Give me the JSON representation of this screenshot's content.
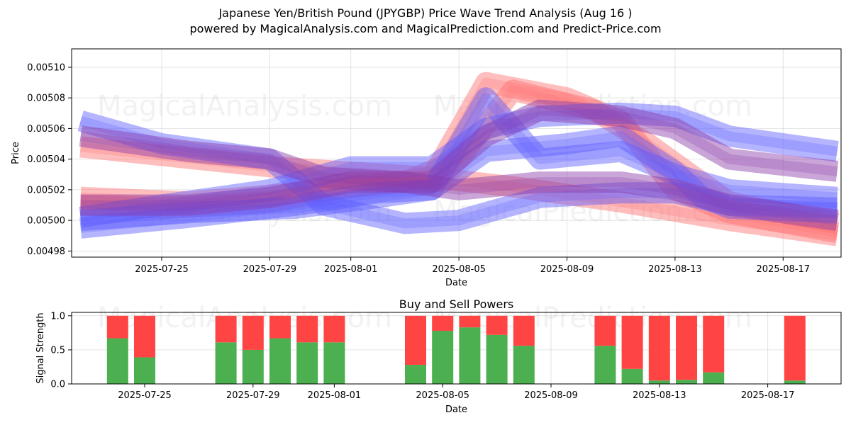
{
  "titles": {
    "main": "Japanese Yen/British Pound (JPYGBP) Price Wave Trend Analysis (Aug 16 )",
    "sub": "powered by MagicalAnalysis.com and MagicalPrediction.com and Predict-Price.com"
  },
  "watermarks": [
    "MagicalAnalysis.com",
    "MagicalPrediction.com"
  ],
  "colors": {
    "buy": "#4caf50",
    "sell": "#ff4444",
    "band_red": "#ff6f6f",
    "band_blue": "#5a5aff",
    "band_purple": "#8a3aa8"
  },
  "chart_data": [
    {
      "type": "area",
      "xlabel": "Date",
      "ylabel": "Price",
      "ylim": [
        0.004976,
        0.005112
      ],
      "x_ticks": [
        "2025-07-25",
        "2025-07-29",
        "2025-08-01",
        "2025-08-05",
        "2025-08-09",
        "2025-08-13",
        "2025-08-17"
      ],
      "y_ticks": [
        "0.00498",
        "0.00500",
        "0.00502",
        "0.00504",
        "0.00506",
        "0.00508",
        "0.00510"
      ],
      "grid": true,
      "series": [
        {
          "color": "red",
          "points": [
            [
              "2025-07-22",
              0.005048
            ],
            [
              "2025-07-29",
              0.005035
            ],
            [
              "2025-08-04",
              0.005028
            ],
            [
              "2025-08-07",
              0.005022
            ],
            [
              "2025-08-11",
              0.005012
            ],
            [
              "2025-08-15",
              0.005
            ],
            [
              "2025-08-19",
              0.00499
            ]
          ]
        },
        {
          "color": "red",
          "points": [
            [
              "2025-07-22",
              0.00501
            ],
            [
              "2025-07-25",
              0.005008
            ],
            [
              "2025-07-29",
              0.005012
            ],
            [
              "2025-08-01",
              0.005022
            ],
            [
              "2025-08-04",
              0.005028
            ],
            [
              "2025-08-06",
              0.00509
            ],
            [
              "2025-08-09",
              0.00508
            ],
            [
              "2025-08-11",
              0.005065
            ],
            [
              "2025-08-13",
              0.00502
            ],
            [
              "2025-08-15",
              0.005005
            ],
            [
              "2025-08-19",
              0.004992
            ]
          ]
        },
        {
          "color": "red",
          "points": [
            [
              "2025-07-22",
              0.005015
            ],
            [
              "2025-07-26",
              0.005012
            ],
            [
              "2025-07-30",
              0.005018
            ],
            [
              "2025-08-03",
              0.005025
            ],
            [
              "2025-08-05",
              0.00504
            ],
            [
              "2025-08-07",
              0.005085
            ],
            [
              "2025-08-10",
              0.005072
            ],
            [
              "2025-08-12",
              0.00505
            ],
            [
              "2025-08-15",
              0.005012
            ],
            [
              "2025-08-19",
              0.004998
            ]
          ]
        },
        {
          "color": "blue",
          "points": [
            [
              "2025-07-22",
              0.005065
            ],
            [
              "2025-07-25",
              0.00505
            ],
            [
              "2025-07-29",
              0.00504
            ],
            [
              "2025-07-31",
              0.00501
            ],
            [
              "2025-08-03",
              0.004998
            ],
            [
              "2025-08-05",
              0.005
            ],
            [
              "2025-08-08",
              0.005015
            ],
            [
              "2025-08-11",
              0.005018
            ],
            [
              "2025-08-13",
              0.005018
            ],
            [
              "2025-08-15",
              0.00501
            ],
            [
              "2025-08-19",
              0.005008
            ]
          ]
        },
        {
          "color": "blue",
          "points": [
            [
              "2025-07-22",
              0.005002
            ],
            [
              "2025-07-25",
              0.00501
            ],
            [
              "2025-07-29",
              0.00502
            ],
            [
              "2025-08-01",
              0.005035
            ],
            [
              "2025-08-04",
              0.005035
            ],
            [
              "2025-08-06",
              0.00506
            ],
            [
              "2025-08-08",
              0.005068
            ],
            [
              "2025-08-11",
              0.00507
            ],
            [
              "2025-08-13",
              0.005068
            ],
            [
              "2025-08-15",
              0.005055
            ],
            [
              "2025-08-19",
              0.005045
            ]
          ]
        },
        {
          "color": "blue",
          "points": [
            [
              "2025-07-22",
              0.005
            ],
            [
              "2025-07-26",
              0.005005
            ],
            [
              "2025-07-30",
              0.005008
            ],
            [
              "2025-08-02",
              0.005015
            ],
            [
              "2025-08-04",
              0.00502
            ],
            [
              "2025-08-06",
              0.00508
            ],
            [
              "2025-08-07",
              0.00506
            ],
            [
              "2025-08-08",
              0.00504
            ],
            [
              "2025-08-11",
              0.005045
            ],
            [
              "2025-08-13",
              0.00503
            ],
            [
              "2025-08-15",
              0.00502
            ],
            [
              "2025-08-19",
              0.005015
            ]
          ]
        },
        {
          "color": "blue",
          "points": [
            [
              "2025-07-22",
              0.004995
            ],
            [
              "2025-07-26",
              0.005002
            ],
            [
              "2025-07-30",
              0.00501
            ],
            [
              "2025-08-02",
              0.005018
            ],
            [
              "2025-08-04",
              0.00502
            ],
            [
              "2025-08-06",
              0.005045
            ],
            [
              "2025-08-09",
              0.00505
            ],
            [
              "2025-08-11",
              0.005055
            ],
            [
              "2025-08-13",
              0.005032
            ],
            [
              "2025-08-14",
              0.005015
            ],
            [
              "2025-08-15",
              0.005008
            ],
            [
              "2025-08-19",
              0.005005
            ]
          ]
        },
        {
          "color": "purple",
          "points": [
            [
              "2025-07-22",
              0.005055
            ],
            [
              "2025-07-26",
              0.005045
            ],
            [
              "2025-07-29",
              0.00504
            ],
            [
              "2025-07-31",
              0.005028
            ],
            [
              "2025-08-03",
              0.005025
            ],
            [
              "2025-08-05",
              0.00502
            ],
            [
              "2025-08-08",
              0.005025
            ],
            [
              "2025-08-11",
              0.005025
            ],
            [
              "2025-08-13",
              0.00502
            ],
            [
              "2025-08-15",
              0.00501
            ],
            [
              "2025-08-19",
              0.005
            ]
          ]
        },
        {
          "color": "purple",
          "points": [
            [
              "2025-07-22",
              0.00501
            ],
            [
              "2025-07-26",
              0.00501
            ],
            [
              "2025-07-29",
              0.005015
            ],
            [
              "2025-08-01",
              0.005025
            ],
            [
              "2025-08-04",
              0.005025
            ],
            [
              "2025-08-06",
              0.005055
            ],
            [
              "2025-08-08",
              0.005072
            ],
            [
              "2025-08-11",
              0.005068
            ],
            [
              "2025-08-13",
              0.00506
            ],
            [
              "2025-08-15",
              0.00504
            ],
            [
              "2025-08-19",
              0.005032
            ]
          ]
        }
      ]
    },
    {
      "type": "bar",
      "title": "Buy and Sell Powers",
      "xlabel": "Date",
      "ylabel": "Signal Strength",
      "ylim": [
        0,
        1.05
      ],
      "y_ticks": [
        "0.0",
        "0.5",
        "1.0"
      ],
      "x_ticks": [
        "2025-07-25",
        "2025-07-29",
        "2025-08-01",
        "2025-08-05",
        "2025-08-09",
        "2025-08-13",
        "2025-08-17"
      ],
      "grid": true,
      "categories": [
        "2025-07-24",
        "2025-07-25",
        "2025-07-28",
        "2025-07-29",
        "2025-07-30",
        "2025-07-31",
        "2025-08-01",
        "2025-08-04",
        "2025-08-05",
        "2025-08-06",
        "2025-08-07",
        "2025-08-08",
        "2025-08-11",
        "2025-08-12",
        "2025-08-13",
        "2025-08-14",
        "2025-08-15",
        "2025-08-18"
      ],
      "series": [
        {
          "name": "Buy",
          "values": [
            0.67,
            0.39,
            0.61,
            0.5,
            0.67,
            0.61,
            0.61,
            0.28,
            0.78,
            0.83,
            0.72,
            0.56,
            0.56,
            0.22,
            0.05,
            0.06,
            0.17,
            0.05
          ]
        },
        {
          "name": "Sell",
          "values": [
            0.33,
            0.61,
            0.39,
            0.5,
            0.33,
            0.39,
            0.39,
            0.72,
            0.22,
            0.17,
            0.28,
            0.44,
            0.44,
            0.78,
            0.95,
            0.94,
            0.83,
            0.95
          ]
        }
      ]
    }
  ]
}
